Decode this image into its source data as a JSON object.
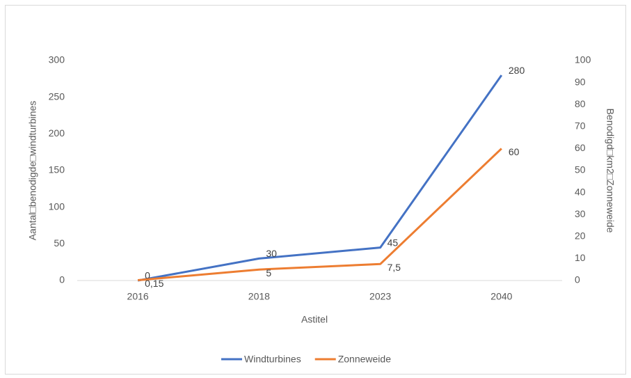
{
  "chart_data": {
    "type": "line",
    "categories": [
      "2016",
      "2018",
      "2023",
      "2040"
    ],
    "series": [
      {
        "name": "Windturbines",
        "color": "#4472c4",
        "values": [
          0,
          30,
          45,
          280
        ]
      },
      {
        "name": "Zonneweide",
        "color": "#ed7d31",
        "values": [
          0.15,
          5,
          7.5,
          60
        ],
        "value_labels": [
          "0,15",
          "5",
          "7,5",
          "60"
        ],
        "axis": "y2"
      }
    ],
    "x_label": "Astitel",
    "y_label": "Aantal□benodigde□windturbines",
    "y2_label": "Benodigd□km2□Zonneweide",
    "ylim": [
      0,
      300
    ],
    "yticks": [
      0,
      50,
      100,
      150,
      200,
      250,
      300
    ],
    "y2lim": [
      0,
      100
    ],
    "y2ticks": [
      0,
      10,
      20,
      30,
      40,
      50,
      60,
      70,
      80,
      90,
      100
    ],
    "legend": "bottom"
  }
}
